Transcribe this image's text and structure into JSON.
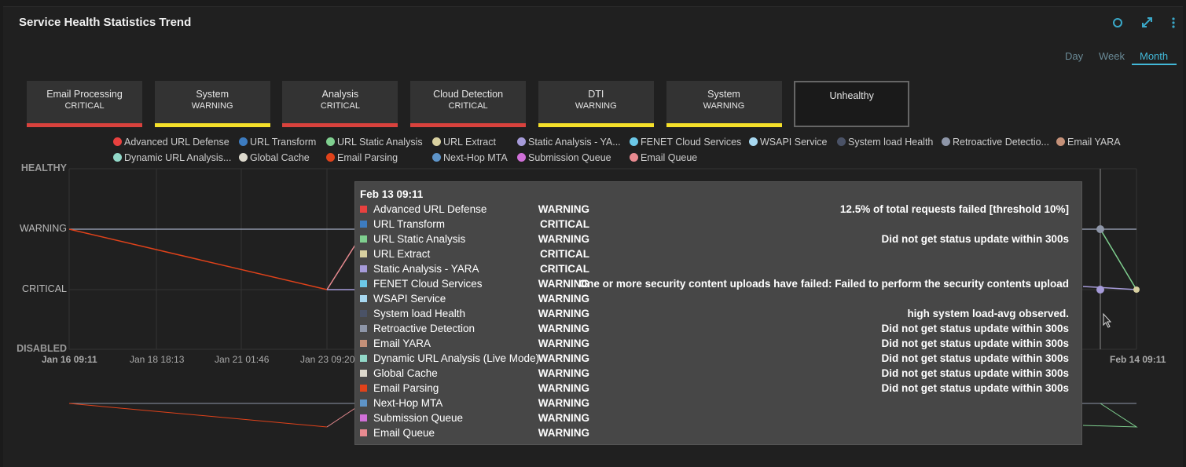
{
  "header": {
    "title": "Service Health Statistics Trend"
  },
  "range_tabs": {
    "items": [
      "Day",
      "Week",
      "Month"
    ],
    "active": 2
  },
  "status_cards": [
    {
      "name": "Email Processing",
      "status": "CRITICAL",
      "color": "#d9423d"
    },
    {
      "name": "System",
      "status": "WARNING",
      "color": "#f5e02a"
    },
    {
      "name": "Analysis",
      "status": "CRITICAL",
      "color": "#d9423d"
    },
    {
      "name": "Cloud Detection",
      "status": "CRITICAL",
      "color": "#d9423d"
    },
    {
      "name": "DTI",
      "status": "WARNING",
      "color": "#f5e02a"
    },
    {
      "name": "System",
      "status": "WARNING",
      "color": "#f5e02a"
    },
    {
      "name": "Unhealthy"
    }
  ],
  "legend": [
    {
      "name": "Advanced URL Defense",
      "color": "#e8413f"
    },
    {
      "name": "URL Transform",
      "color": "#3d7cc0"
    },
    {
      "name": "URL Static Analysis",
      "color": "#7fcf8f"
    },
    {
      "name": "URL Extract",
      "color": "#d8d0a0"
    },
    {
      "name": "Static Analysis - YA...",
      "color": "#a69bd9"
    },
    {
      "name": "FENET Cloud Services",
      "color": "#6cc8e8"
    },
    {
      "name": "WSAPI Service",
      "color": "#a8d8f0"
    },
    {
      "name": "System load Health",
      "color": "#4a5266"
    },
    {
      "name": "Retroactive Detectio...",
      "color": "#8e96a8"
    },
    {
      "name": "Email YARA",
      "color": "#c49078"
    },
    {
      "name": "Dynamic URL Analysis...",
      "color": "#92d8c8"
    },
    {
      "name": "Global Cache",
      "color": "#dcd8cc"
    },
    {
      "name": "Email Parsing",
      "color": "#e0421a"
    },
    {
      "name": "Next-Hop MTA",
      "color": "#5e94c8"
    },
    {
      "name": "Submission Queue",
      "color": "#d070d8"
    },
    {
      "name": "Email Queue",
      "color": "#e88a90"
    }
  ],
  "chart": {
    "y_labels": [
      "HEALTHY",
      "WARNING",
      "CRITICAL",
      "DISABLED"
    ],
    "x_labels": [
      "Jan 16 09:11",
      "Jan 18 18:13",
      "Jan 21 01:46",
      "Jan 23 09:20",
      "Feb 14 09:11"
    ]
  },
  "tooltip": {
    "title": "Feb 13 09:11",
    "rows": [
      {
        "name": "Advanced URL Defense",
        "status": "WARNING",
        "message": "12.5% of total requests failed [threshold 10%]",
        "color": "#e8413f"
      },
      {
        "name": "URL Transform",
        "status": "CRITICAL",
        "color": "#3d7cc0"
      },
      {
        "name": "URL Static Analysis",
        "status": "WARNING",
        "message": "Did not get status update within 300s",
        "color": "#7fcf8f"
      },
      {
        "name": "URL Extract",
        "status": "CRITICAL",
        "color": "#d8d0a0"
      },
      {
        "name": "Static Analysis - YARA",
        "status": "CRITICAL",
        "color": "#a69bd9"
      },
      {
        "name": "FENET Cloud Services",
        "status": "WARNING",
        "message": "One or more security content uploads have failed: Failed to perform the security contents upload",
        "color": "#6cc8e8"
      },
      {
        "name": "WSAPI Service",
        "status": "WARNING",
        "color": "#a8d8f0"
      },
      {
        "name": "System load Health",
        "status": "WARNING",
        "message": "high system load-avg observed.",
        "color": "#4a5266"
      },
      {
        "name": "Retroactive Detection",
        "status": "WARNING",
        "message": "Did not get status update within 300s",
        "color": "#8e96a8"
      },
      {
        "name": "Email YARA",
        "status": "WARNING",
        "message": "Did not get status update within 300s",
        "color": "#c49078"
      },
      {
        "name": "Dynamic URL Analysis (Live Mode)",
        "status": "WARNING",
        "message": "Did not get status update within 300s",
        "color": "#92d8c8"
      },
      {
        "name": "Global Cache",
        "status": "WARNING",
        "message": "Did not get status update within 300s",
        "color": "#dcd8cc"
      },
      {
        "name": "Email Parsing",
        "status": "WARNING",
        "message": "Did not get status update within 300s",
        "color": "#e0421a"
      },
      {
        "name": "Next-Hop MTA",
        "status": "WARNING",
        "color": "#5e94c8"
      },
      {
        "name": "Submission Queue",
        "status": "WARNING",
        "color": "#d070d8"
      },
      {
        "name": "Email Queue",
        "status": "WARNING",
        "color": "#e88a90"
      }
    ]
  }
}
